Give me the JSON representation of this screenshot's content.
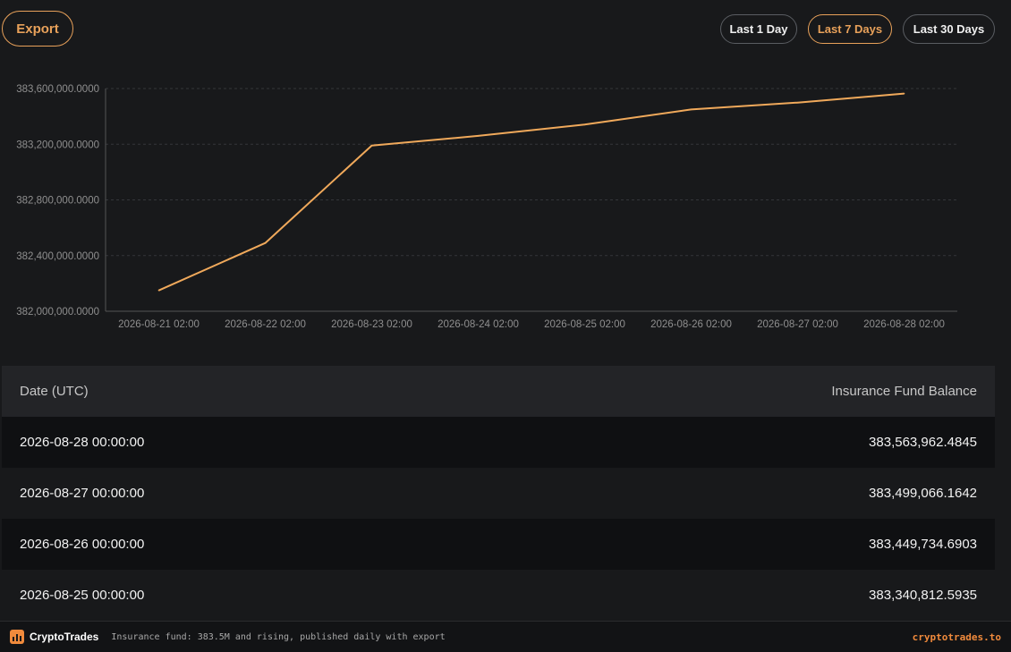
{
  "toolbar": {
    "export_label": "Export",
    "ranges": [
      {
        "label": "Last 1 Day",
        "active": false
      },
      {
        "label": "Last 7 Days",
        "active": true
      },
      {
        "label": "Last 30 Days",
        "active": false
      }
    ]
  },
  "colors": {
    "accent": "#e8a15a",
    "background": "#18191b",
    "line": "#f0a95b",
    "brand": "#f08a3c"
  },
  "chart_data": {
    "type": "line",
    "x": [
      "2026-08-21 02:00",
      "2026-08-22 02:00",
      "2026-08-23 02:00",
      "2026-08-24 02:00",
      "2026-08-25 02:00",
      "2026-08-26 02:00",
      "2026-08-27 02:00",
      "2026-08-28 02:00"
    ],
    "xticks": [
      "2026-08-21 02:00",
      "2026-08-22 02:00",
      "2026-08-23 02:00",
      "2026-08-24 02:00",
      "2026-08-25 02:00",
      "2026-08-26 02:00",
      "2026-08-27 02:00",
      "2026-08-28 02:00"
    ],
    "series": [
      {
        "values": [
          382150000,
          382490000,
          383190000,
          383260000,
          383340812.5935,
          383449734.6903,
          383499066.1642,
          383563962.4845
        ]
      }
    ],
    "ylim": [
      382000000,
      383600000
    ],
    "yticks": [
      "382,000,000.0000",
      "382,400,000.0000",
      "382,800,000.0000",
      "383,200,000.0000",
      "383,600,000.0000"
    ],
    "ytick_values": [
      382000000,
      382400000,
      382800000,
      383200000,
      383600000
    ],
    "grid": true
  },
  "table": {
    "headers": [
      "Date (UTC)",
      "Insurance Fund Balance"
    ],
    "rows": [
      [
        "2026-08-28 00:00:00",
        "383,563,962.4845"
      ],
      [
        "2026-08-27 00:00:00",
        "383,499,066.1642"
      ],
      [
        "2026-08-26 00:00:00",
        "383,449,734.6903"
      ],
      [
        "2026-08-25 00:00:00",
        "383,340,812.5935"
      ]
    ]
  },
  "footer": {
    "brand": "CryptoTrades",
    "tagline": "Insurance fund: 383.5M and rising, published daily with export",
    "site": "cryptotrades.to"
  }
}
